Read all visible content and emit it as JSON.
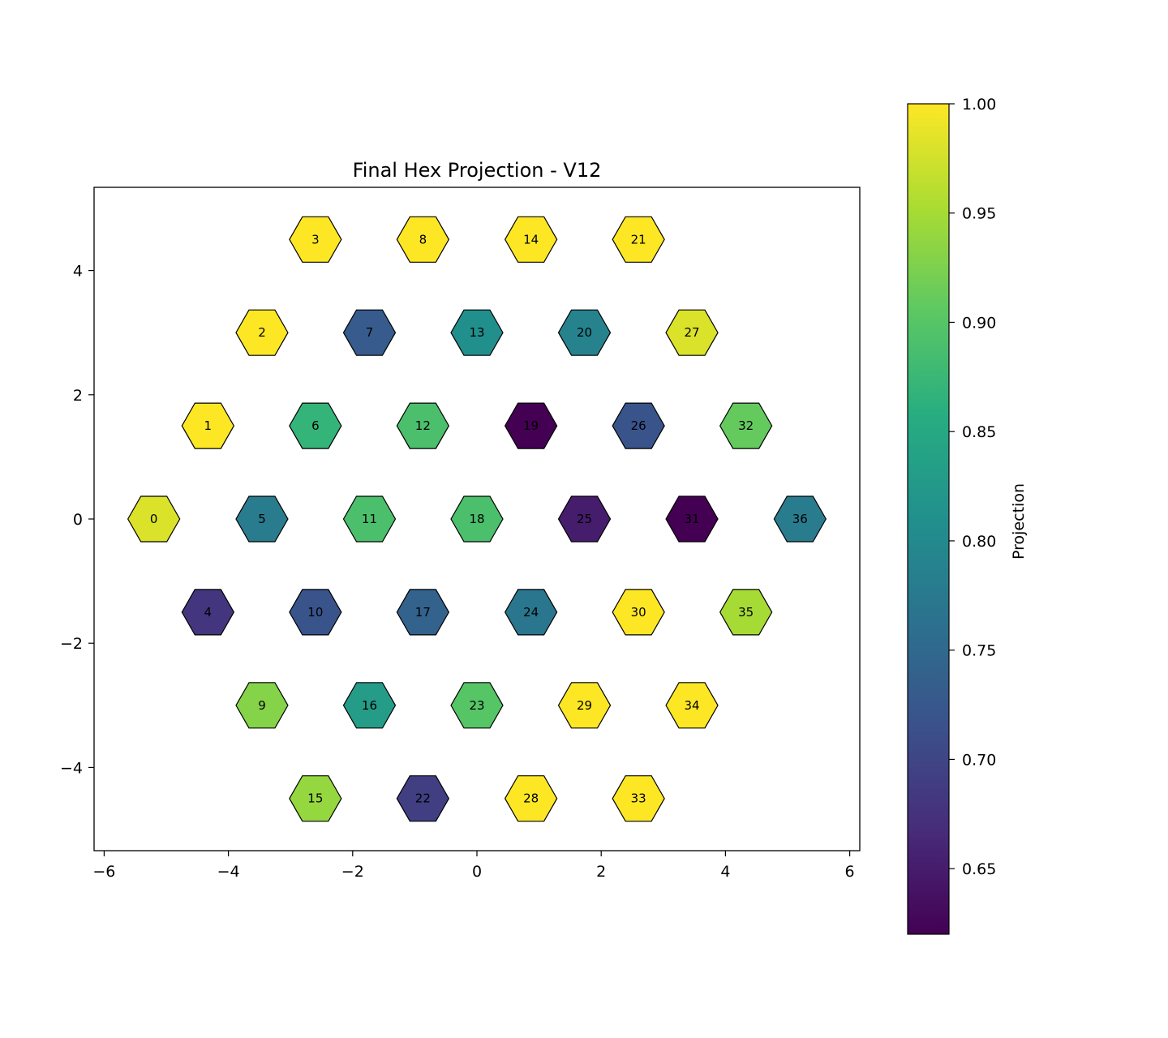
{
  "chart_data": {
    "type": "heatmap",
    "title": "Final Hex Projection - V12",
    "xlim": [
      -6.2,
      6.2
    ],
    "ylim": [
      -5.4,
      5.4
    ],
    "x_ticks": [
      -6,
      -4,
      -2,
      0,
      2,
      4,
      6
    ],
    "y_ticks": [
      -4,
      -2,
      0,
      2,
      4
    ],
    "colorbar": {
      "label": "Projection",
      "colormap": "viridis",
      "range": [
        0.62,
        1.0
      ],
      "ticks": [
        0.65,
        0.7,
        0.75,
        0.8,
        0.85,
        0.9,
        0.95,
        1.0
      ],
      "tick_labels": [
        "0.65",
        "0.70",
        "0.75",
        "0.80",
        "0.85",
        "0.90",
        "0.95",
        "1.00"
      ]
    },
    "cells": [
      {
        "id": "0",
        "x": -5.2,
        "y": 0.0,
        "value": 0.98
      },
      {
        "id": "1",
        "x": -4.33,
        "y": 1.5,
        "value": 1.0
      },
      {
        "id": "2",
        "x": -3.46,
        "y": 3.0,
        "value": 1.0
      },
      {
        "id": "3",
        "x": -2.6,
        "y": 4.5,
        "value": 1.0
      },
      {
        "id": "4",
        "x": -4.33,
        "y": -1.5,
        "value": 0.68
      },
      {
        "id": "5",
        "x": -3.46,
        "y": 0.0,
        "value": 0.78
      },
      {
        "id": "6",
        "x": -2.6,
        "y": 1.5,
        "value": 0.87
      },
      {
        "id": "7",
        "x": -1.73,
        "y": 3.0,
        "value": 0.73
      },
      {
        "id": "8",
        "x": -0.87,
        "y": 4.5,
        "value": 1.0
      },
      {
        "id": "9",
        "x": -3.46,
        "y": -3.0,
        "value": 0.93
      },
      {
        "id": "10",
        "x": -2.6,
        "y": -1.5,
        "value": 0.72
      },
      {
        "id": "11",
        "x": -1.73,
        "y": 0.0,
        "value": 0.89
      },
      {
        "id": "12",
        "x": -0.87,
        "y": 1.5,
        "value": 0.89
      },
      {
        "id": "13",
        "x": 0.0,
        "y": 3.0,
        "value": 0.81
      },
      {
        "id": "14",
        "x": 0.87,
        "y": 4.5,
        "value": 1.0
      },
      {
        "id": "15",
        "x": -2.6,
        "y": -4.5,
        "value": 0.94
      },
      {
        "id": "16",
        "x": -1.73,
        "y": -3.0,
        "value": 0.83
      },
      {
        "id": "17",
        "x": -0.87,
        "y": -1.5,
        "value": 0.74
      },
      {
        "id": "18",
        "x": 0.0,
        "y": 0.0,
        "value": 0.89
      },
      {
        "id": "19",
        "x": 0.87,
        "y": 1.5,
        "value": 0.62
      },
      {
        "id": "20",
        "x": 1.73,
        "y": 3.0,
        "value": 0.79
      },
      {
        "id": "21",
        "x": 2.6,
        "y": 4.5,
        "value": 1.0
      },
      {
        "id": "22",
        "x": -0.87,
        "y": -4.5,
        "value": 0.69
      },
      {
        "id": "23",
        "x": 0.0,
        "y": -3.0,
        "value": 0.9
      },
      {
        "id": "24",
        "x": 0.87,
        "y": -1.5,
        "value": 0.77
      },
      {
        "id": "25",
        "x": 1.73,
        "y": 0.0,
        "value": 0.65
      },
      {
        "id": "26",
        "x": 2.6,
        "y": 1.5,
        "value": 0.72
      },
      {
        "id": "27",
        "x": 3.46,
        "y": 3.0,
        "value": 0.98
      },
      {
        "id": "28",
        "x": 0.87,
        "y": -4.5,
        "value": 1.0
      },
      {
        "id": "29",
        "x": 1.73,
        "y": -3.0,
        "value": 1.0
      },
      {
        "id": "30",
        "x": 2.6,
        "y": -1.5,
        "value": 1.0
      },
      {
        "id": "31",
        "x": 3.46,
        "y": 0.0,
        "value": 0.62
      },
      {
        "id": "32",
        "x": 4.33,
        "y": 1.5,
        "value": 0.91
      },
      {
        "id": "33",
        "x": 2.6,
        "y": -4.5,
        "value": 1.0
      },
      {
        "id": "34",
        "x": 3.46,
        "y": -3.0,
        "value": 1.0
      },
      {
        "id": "35",
        "x": 4.33,
        "y": -1.5,
        "value": 0.95
      },
      {
        "id": "36",
        "x": 5.2,
        "y": 0.0,
        "value": 0.78
      }
    ]
  }
}
